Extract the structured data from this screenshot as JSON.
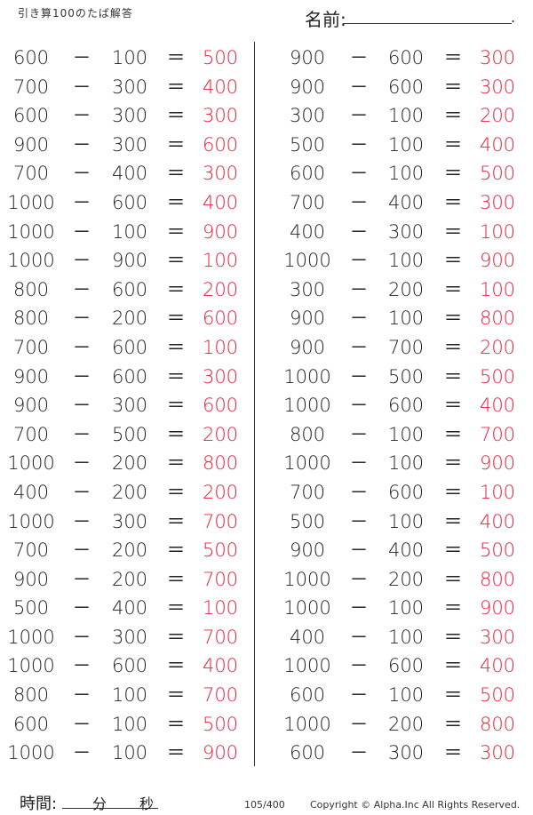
{
  "header": {
    "title": "引き算100のたば解答",
    "name_label": "名前:",
    "name_end": "."
  },
  "colors": {
    "answer": "#e8203a",
    "text": "#222222"
  },
  "operators": {
    "minus": "－",
    "equals": "＝"
  },
  "columns": [
    [
      {
        "a": "600",
        "b": "100",
        "ans": "500"
      },
      {
        "a": "700",
        "b": "300",
        "ans": "400"
      },
      {
        "a": "600",
        "b": "300",
        "ans": "300"
      },
      {
        "a": "900",
        "b": "300",
        "ans": "600"
      },
      {
        "a": "700",
        "b": "400",
        "ans": "300"
      },
      {
        "a": "1000",
        "b": "600",
        "ans": "400"
      },
      {
        "a": "1000",
        "b": "100",
        "ans": "900"
      },
      {
        "a": "1000",
        "b": "900",
        "ans": "100"
      },
      {
        "a": "800",
        "b": "600",
        "ans": "200"
      },
      {
        "a": "800",
        "b": "200",
        "ans": "600"
      },
      {
        "a": "700",
        "b": "600",
        "ans": "100"
      },
      {
        "a": "900",
        "b": "600",
        "ans": "300"
      },
      {
        "a": "900",
        "b": "300",
        "ans": "600"
      },
      {
        "a": "700",
        "b": "500",
        "ans": "200"
      },
      {
        "a": "1000",
        "b": "200",
        "ans": "800"
      },
      {
        "a": "400",
        "b": "200",
        "ans": "200"
      },
      {
        "a": "1000",
        "b": "300",
        "ans": "700"
      },
      {
        "a": "700",
        "b": "200",
        "ans": "500"
      },
      {
        "a": "900",
        "b": "200",
        "ans": "700"
      },
      {
        "a": "500",
        "b": "400",
        "ans": "100"
      },
      {
        "a": "1000",
        "b": "300",
        "ans": "700"
      },
      {
        "a": "1000",
        "b": "600",
        "ans": "400"
      },
      {
        "a": "800",
        "b": "100",
        "ans": "700"
      },
      {
        "a": "600",
        "b": "100",
        "ans": "500"
      },
      {
        "a": "1000",
        "b": "100",
        "ans": "900"
      }
    ],
    [
      {
        "a": "900",
        "b": "600",
        "ans": "300"
      },
      {
        "a": "900",
        "b": "600",
        "ans": "300"
      },
      {
        "a": "300",
        "b": "100",
        "ans": "200"
      },
      {
        "a": "500",
        "b": "100",
        "ans": "400"
      },
      {
        "a": "600",
        "b": "100",
        "ans": "500"
      },
      {
        "a": "700",
        "b": "400",
        "ans": "300"
      },
      {
        "a": "400",
        "b": "300",
        "ans": "100"
      },
      {
        "a": "1000",
        "b": "100",
        "ans": "900"
      },
      {
        "a": "300",
        "b": "200",
        "ans": "100"
      },
      {
        "a": "900",
        "b": "100",
        "ans": "800"
      },
      {
        "a": "900",
        "b": "700",
        "ans": "200"
      },
      {
        "a": "1000",
        "b": "500",
        "ans": "500"
      },
      {
        "a": "1000",
        "b": "600",
        "ans": "400"
      },
      {
        "a": "800",
        "b": "100",
        "ans": "700"
      },
      {
        "a": "1000",
        "b": "100",
        "ans": "900"
      },
      {
        "a": "700",
        "b": "600",
        "ans": "100"
      },
      {
        "a": "500",
        "b": "100",
        "ans": "400"
      },
      {
        "a": "900",
        "b": "400",
        "ans": "500"
      },
      {
        "a": "1000",
        "b": "200",
        "ans": "800"
      },
      {
        "a": "1000",
        "b": "100",
        "ans": "900"
      },
      {
        "a": "400",
        "b": "100",
        "ans": "300"
      },
      {
        "a": "1000",
        "b": "600",
        "ans": "400"
      },
      {
        "a": "600",
        "b": "100",
        "ans": "500"
      },
      {
        "a": "1000",
        "b": "200",
        "ans": "800"
      },
      {
        "a": "600",
        "b": "300",
        "ans": "300"
      }
    ]
  ],
  "footer": {
    "time_label": "時間:",
    "minutes": "分",
    "seconds": "秒",
    "page": "105/400",
    "copyright": "Copyright ©  Alpha.Inc All Rights Reserved."
  }
}
